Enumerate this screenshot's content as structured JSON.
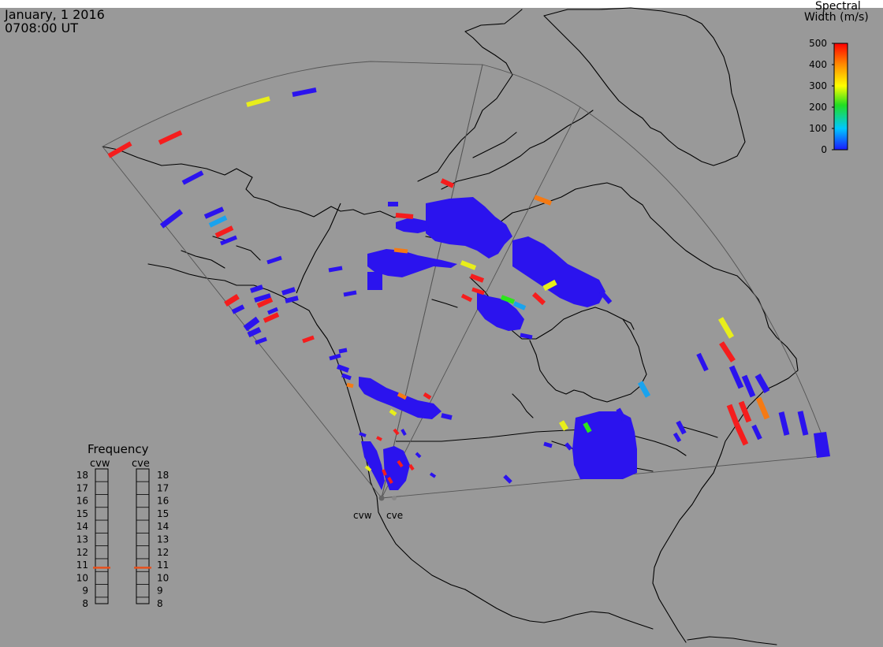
{
  "header": {
    "date": "January, 1 2016",
    "time": "0708:00 UT"
  },
  "colorbar": {
    "title_line1": "Spectral",
    "title_line2": "Width (m/s)",
    "ticks": [
      "500",
      "400",
      "300",
      "200",
      "100",
      "0"
    ],
    "min_value": 0,
    "max_value": 500
  },
  "frequency": {
    "title": "Frequency",
    "cvw_label": "cvw",
    "cve_label": "cve",
    "scale": [
      "18",
      "17",
      "16",
      "15",
      "14",
      "13",
      "12",
      "11",
      "10",
      "9",
      "8"
    ],
    "cvw_value_mhz": 10.8,
    "cve_value_mhz": 10.8,
    "marker_color": "#e8501c"
  },
  "radars": {
    "cvw_label": "cvw",
    "cve_label": "cve"
  },
  "colors": {
    "background": "#999999",
    "scatter_blue": "#2b13ee",
    "scatter_red": "#f51d1d",
    "scatter_orange": "#f57a14",
    "scatter_yellow": "#e8ee1a",
    "scatter_green": "#2ce61a",
    "scatter_cyan": "#1aa3ee"
  }
}
